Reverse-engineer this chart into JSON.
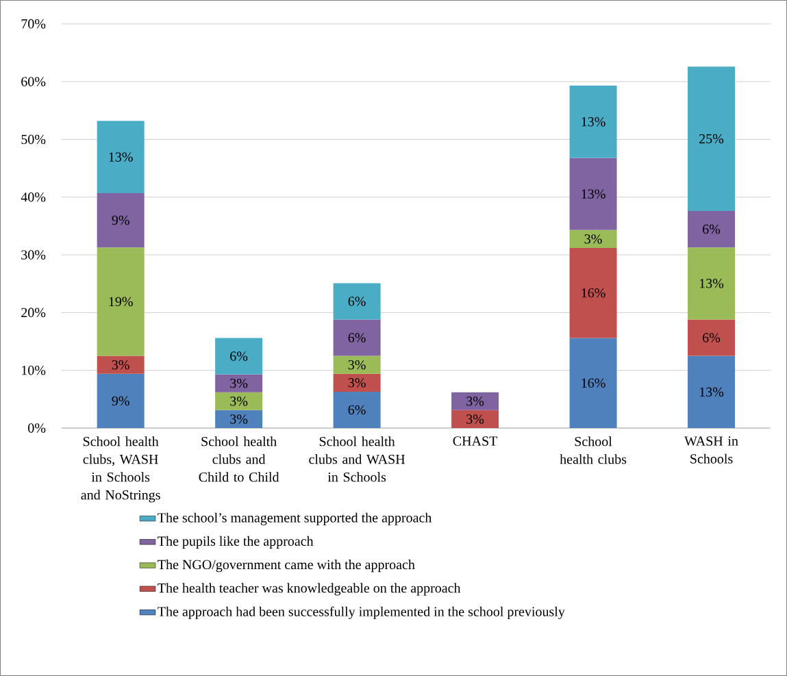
{
  "chart_data": {
    "type": "bar",
    "stacked": true,
    "categories": [
      "School health clubs, WASH in Schools and NoStrings",
      "School health clubs and Child to Child",
      "School health clubs and WASH in Schools",
      "CHAST",
      "School health clubs",
      "WASH in Schools"
    ],
    "series": [
      {
        "name": "The approach had been successfully implemented in the school previously",
        "color": "#4f81bd",
        "values": [
          9.4,
          3.1,
          6.3,
          null,
          15.6,
          12.5
        ],
        "value_labels": [
          "9%",
          "3%",
          "6%",
          null,
          "16%",
          "13%"
        ]
      },
      {
        "name": "The health teacher was knowledgeable on the approach",
        "color": "#c0504d",
        "values": [
          3.1,
          null,
          3.1,
          3.1,
          15.6,
          6.3
        ],
        "value_labels": [
          "3%",
          null,
          "3%",
          "3%",
          "16%",
          "6%"
        ]
      },
      {
        "name": "The NGO/government came with the approach",
        "color": "#9bbb59",
        "values": [
          18.8,
          3.1,
          3.1,
          null,
          3.1,
          12.5
        ],
        "value_labels": [
          "19%",
          "3%",
          "3%",
          null,
          "3%",
          "13%"
        ]
      },
      {
        "name": "The pupils like the approach",
        "color": "#8064a2",
        "values": [
          9.4,
          3.1,
          6.3,
          3.1,
          12.5,
          6.3
        ],
        "value_labels": [
          "9%",
          "3%",
          "6%",
          "3%",
          "13%",
          "6%"
        ]
      },
      {
        "name": "The school’s management supported the approach",
        "color": "#4bacc6",
        "values": [
          12.5,
          6.3,
          6.3,
          null,
          12.5,
          25
        ],
        "value_labels": [
          "13%",
          "6%",
          "6%",
          null,
          "13%",
          "25%"
        ]
      }
    ],
    "ylim": [
      0,
      70
    ],
    "yticks": [
      {
        "value": 0,
        "label": "0%"
      },
      {
        "value": 10,
        "label": "10%"
      },
      {
        "value": 20,
        "label": "20%"
      },
      {
        "value": 30,
        "label": "30%"
      },
      {
        "value": 40,
        "label": "40%"
      },
      {
        "value": 50,
        "label": "50%"
      },
      {
        "value": 60,
        "label": "60%"
      },
      {
        "value": 70,
        "label": "70%"
      }
    ],
    "grid": "y",
    "legend": "bottom"
  }
}
